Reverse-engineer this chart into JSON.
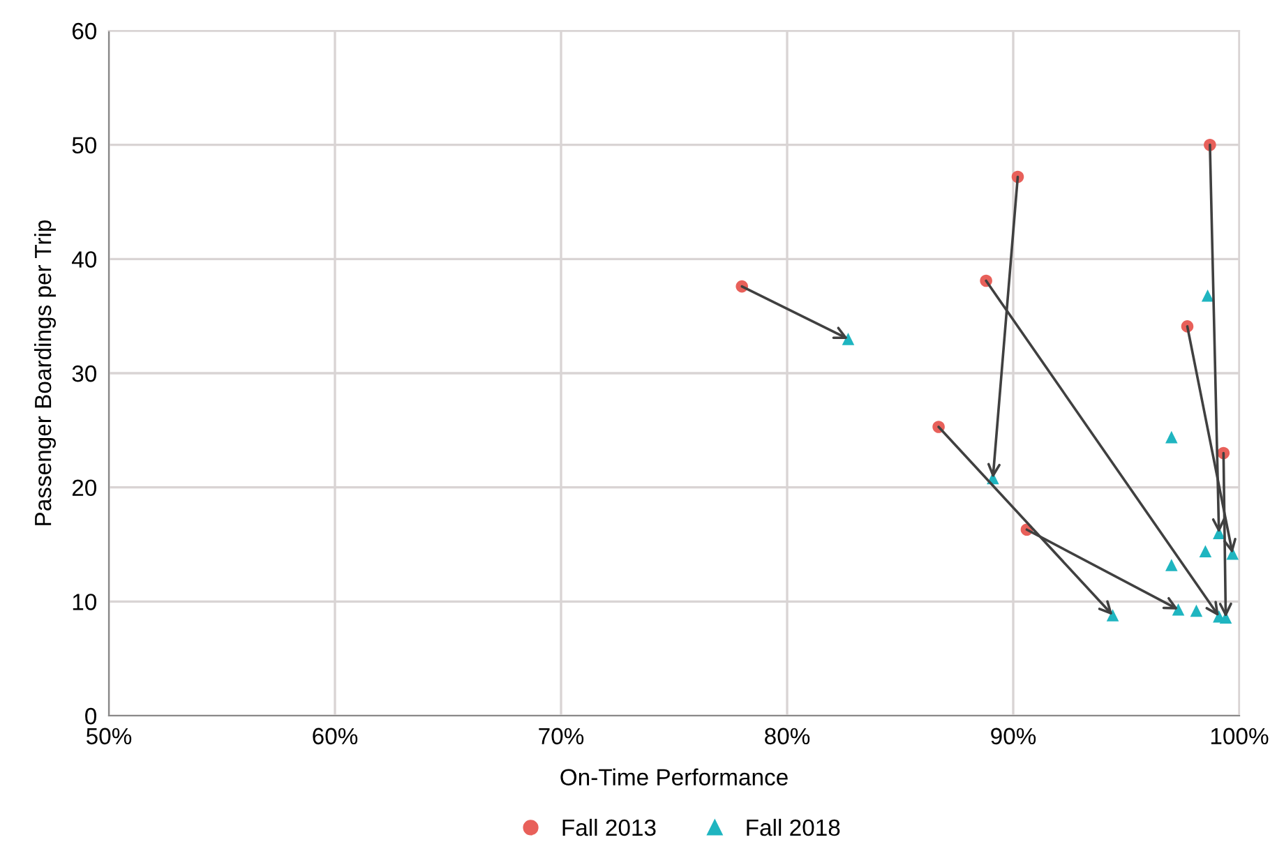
{
  "chart_data": {
    "type": "scatter",
    "xlabel": "On-Time Performance",
    "ylabel": "Passenger Boardings per Trip",
    "xlim": [
      50,
      100
    ],
    "ylim": [
      0,
      60
    ],
    "xticks": [
      {
        "value": 50,
        "label": "50%"
      },
      {
        "value": 60,
        "label": "60%"
      },
      {
        "value": 70,
        "label": "70%"
      },
      {
        "value": 80,
        "label": "80%"
      },
      {
        "value": 90,
        "label": "90%"
      },
      {
        "value": 100,
        "label": "100%"
      }
    ],
    "yticks": [
      0,
      10,
      20,
      30,
      40,
      50,
      60
    ],
    "grid": true,
    "legend": "bottom",
    "series": [
      {
        "name": "Fall 2013",
        "marker": "circle",
        "color": "#e8605a",
        "x": [
          78.0,
          86.7,
          90.2,
          88.8,
          90.6,
          98.7,
          97.7,
          99.3
        ],
        "values": [
          37.6,
          25.3,
          47.2,
          38.1,
          16.3,
          50.0,
          34.1,
          23.0
        ]
      },
      {
        "name": "Fall 2018",
        "marker": "triangle",
        "color": "#1fb5c0",
        "x": [
          82.7,
          94.4,
          89.1,
          99.1,
          97.3,
          99.1,
          99.7,
          99.4,
          98.1,
          97.0,
          98.6,
          97.0,
          98.5
        ],
        "values": [
          33.0,
          8.8,
          20.8,
          8.7,
          9.3,
          16.0,
          14.2,
          8.6,
          9.2,
          24.4,
          36.8,
          13.2,
          14.4
        ]
      }
    ]
  }
}
